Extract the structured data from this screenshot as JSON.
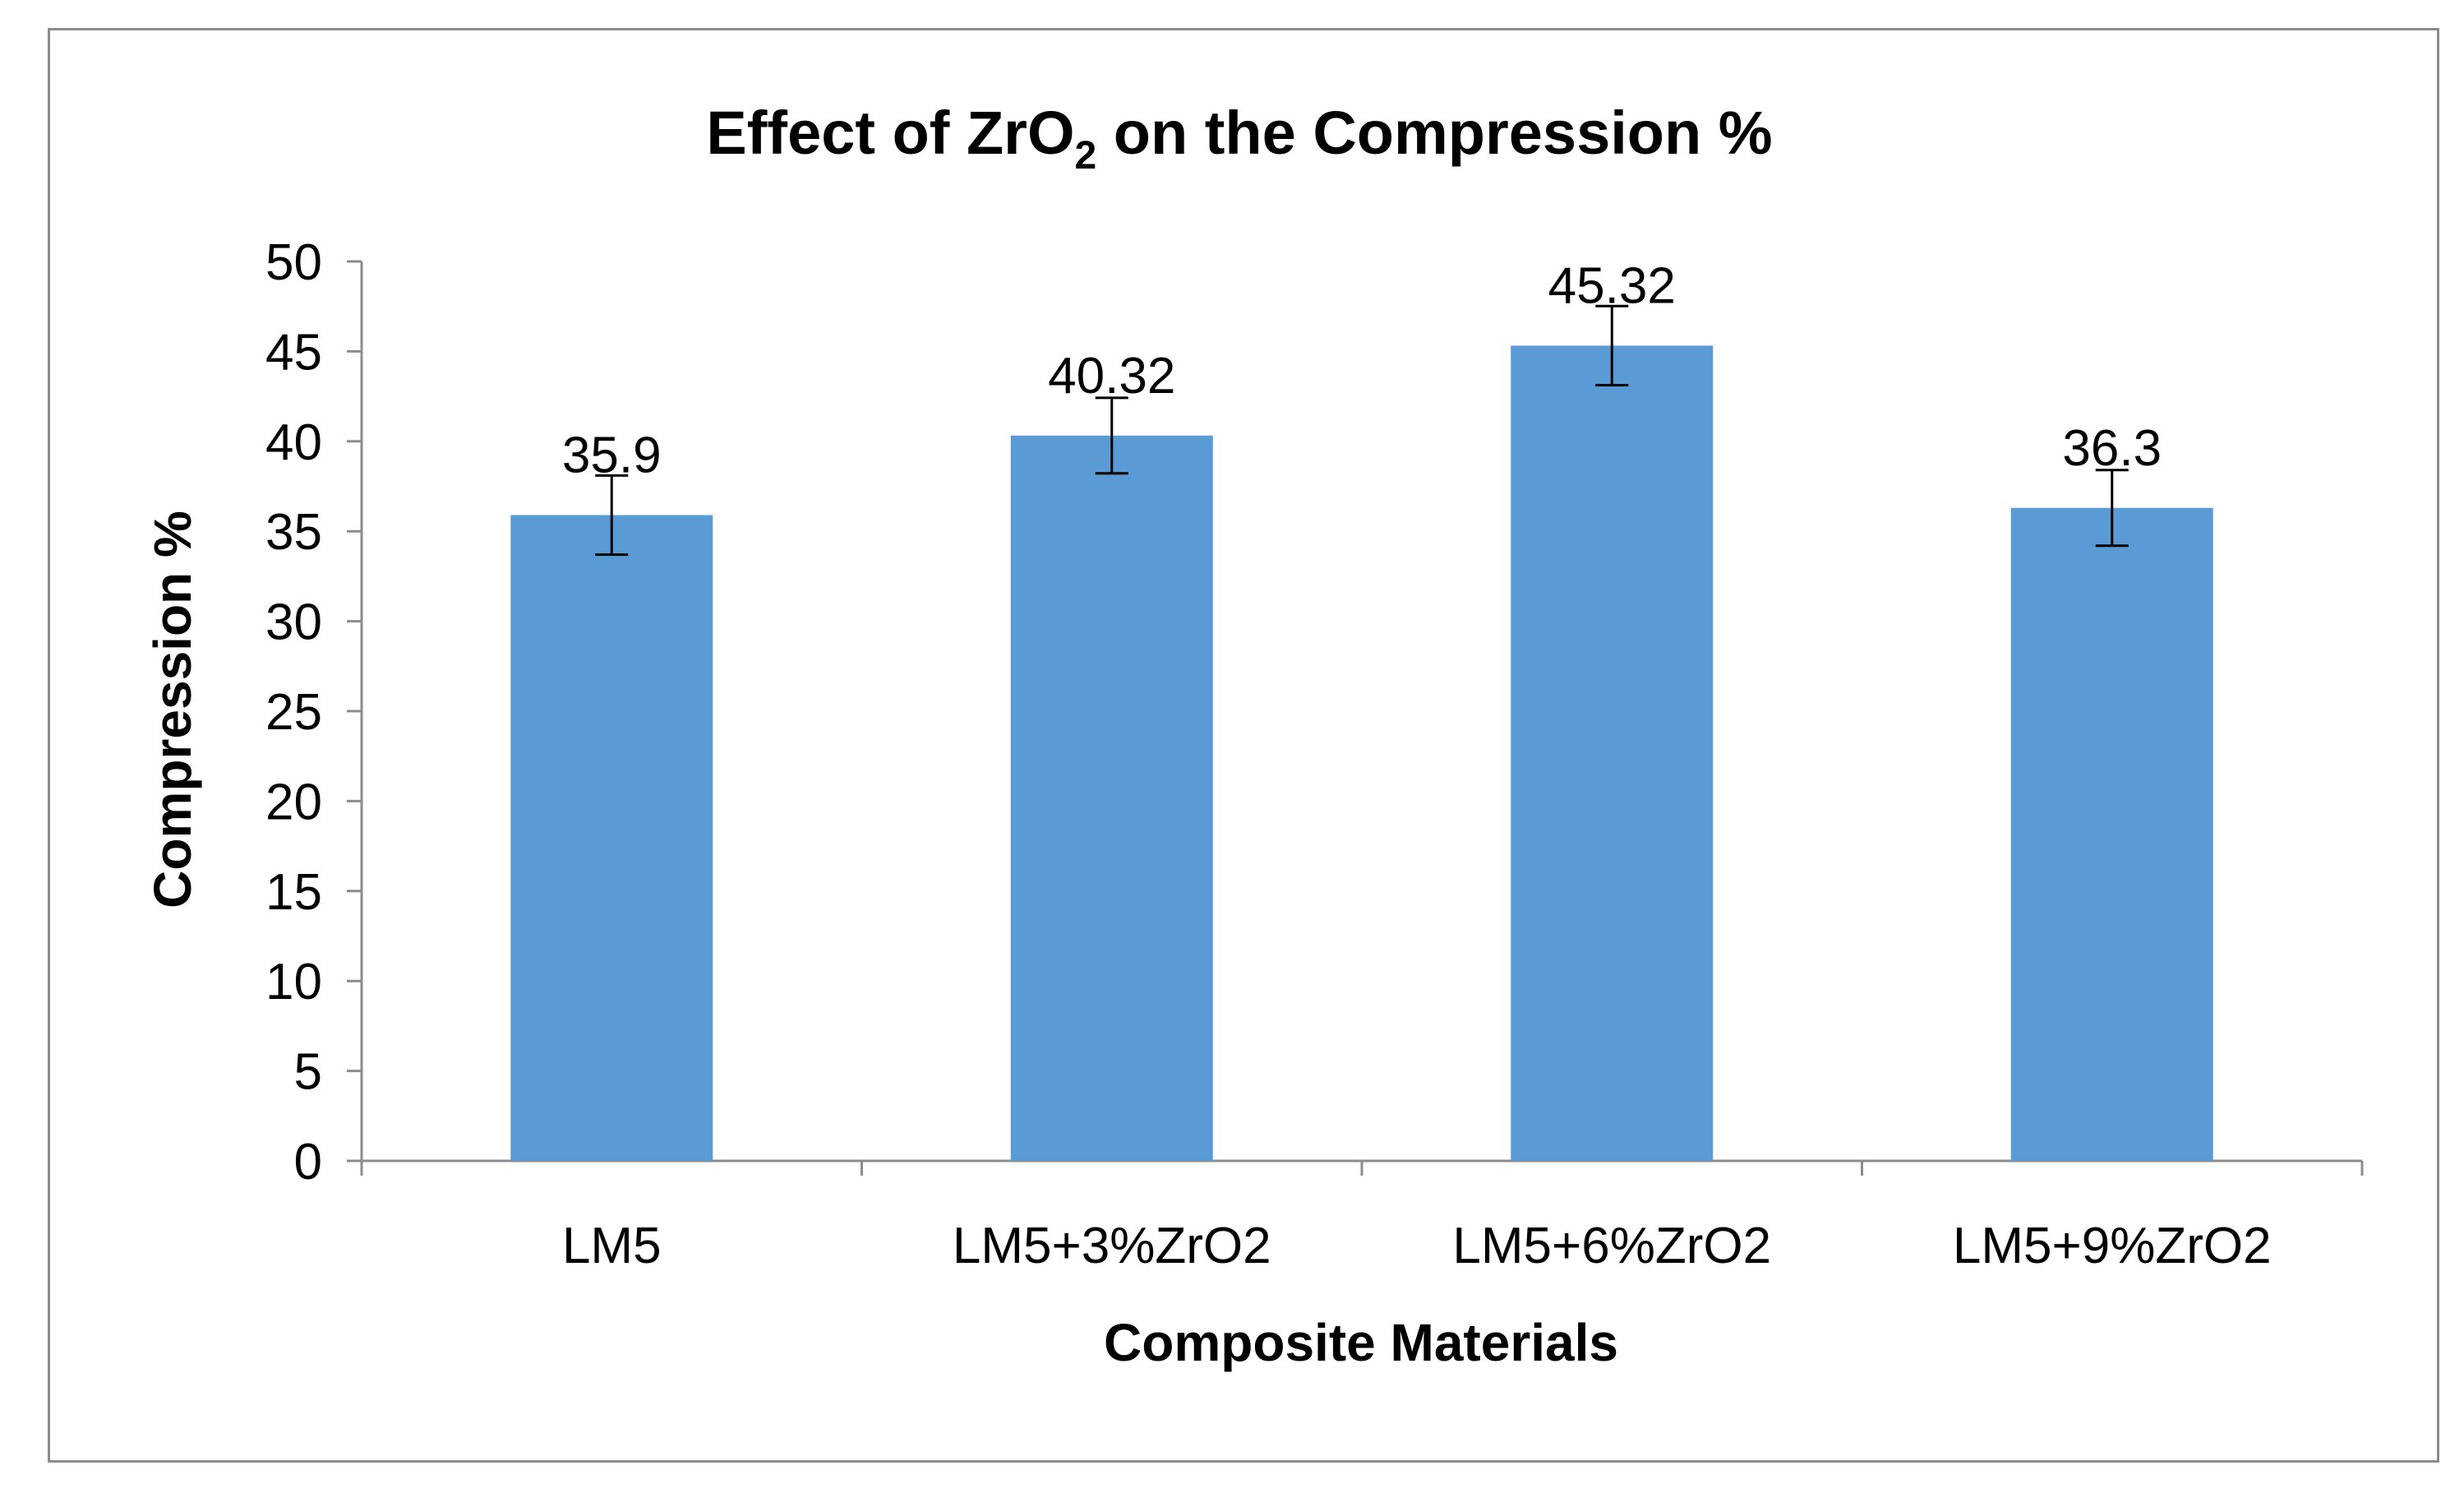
{
  "chart_data": {
    "type": "bar",
    "title_main": "Effect of ZrO",
    "title_subscript": "2",
    "title_rest": " on the Compression %",
    "xlabel": "Composite Materials",
    "ylabel": "Compression %",
    "categories": [
      "LM5",
      "LM5+3%ZrO2",
      "LM5+6%ZrO2",
      "LM5+9%ZrO2"
    ],
    "values": [
      35.9,
      40.32,
      45.32,
      36.3
    ],
    "data_labels": [
      "35.9",
      "40.32",
      "45.32",
      "36.3"
    ],
    "error_bars": [
      2.2,
      2.1,
      2.2,
      2.1
    ],
    "ylim": [
      0,
      50
    ],
    "ytick_step": 5,
    "ytick_labels": [
      "0",
      "5",
      "10",
      "15",
      "20",
      "25",
      "30",
      "35",
      "40",
      "45",
      "50"
    ],
    "bar_color": "#5b9bd5",
    "grid": false,
    "legend": "none"
  }
}
